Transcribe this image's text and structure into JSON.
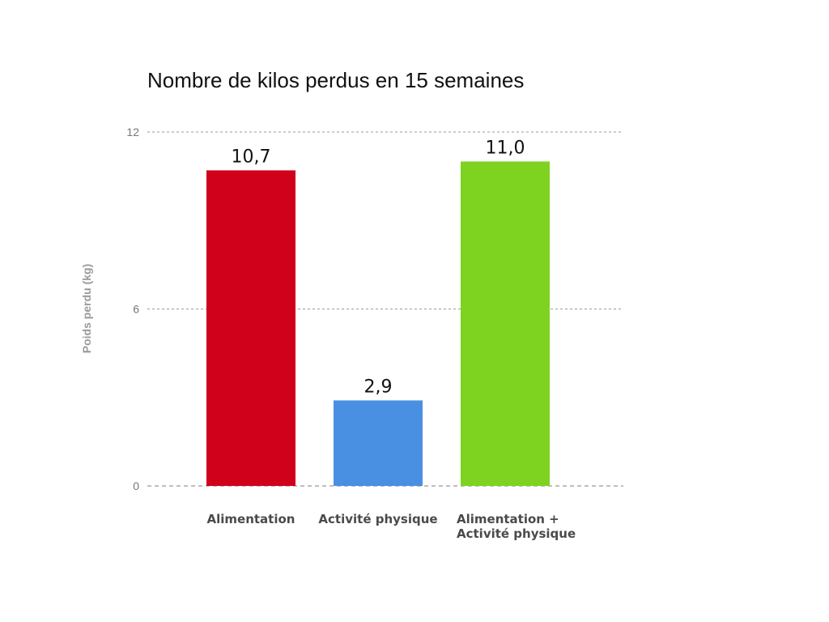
{
  "chart_data": {
    "type": "bar",
    "title": "Nombre de kilos perdus en 15 semaines",
    "xlabel": "",
    "ylabel": "Poids perdu (kg)",
    "ylim": [
      0,
      12
    ],
    "yticks": [
      0,
      6,
      12
    ],
    "grid": true,
    "categories": [
      [
        "Alimentation"
      ],
      [
        "Activité physique"
      ],
      [
        "Alimentation +",
        "Activité physique"
      ]
    ],
    "values": [
      10.7,
      2.9,
      11.0
    ],
    "value_labels": [
      "10,7",
      "2,9",
      "11,0"
    ],
    "colors": [
      "#D0021B",
      "#4A90E2",
      "#7ED321"
    ]
  }
}
